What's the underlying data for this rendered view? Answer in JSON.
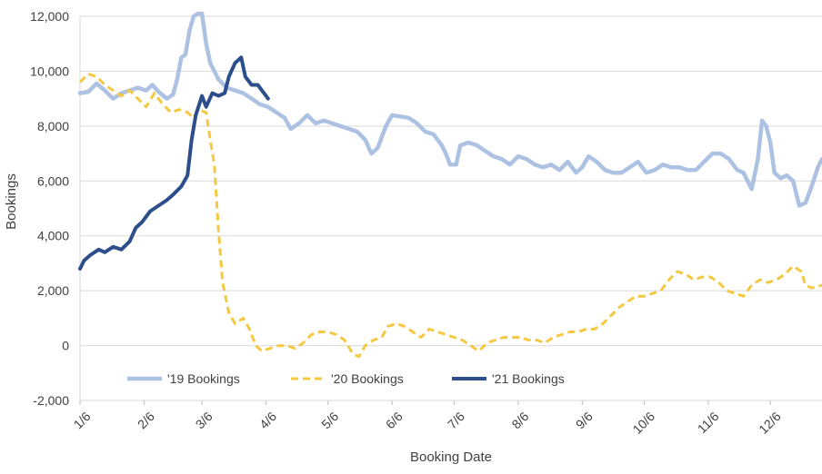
{
  "chart_data": {
    "type": "line",
    "title": "",
    "xlabel": "Booking Date",
    "ylabel": "Bookings",
    "ylim": [
      -2000,
      12000
    ],
    "yticks": [
      -2000,
      0,
      2000,
      4000,
      6000,
      8000,
      10000,
      12000
    ],
    "ytick_labels": [
      "-2,000",
      "0",
      "2,000",
      "4,000",
      "6,000",
      "8,000",
      "10,000",
      "12,000"
    ],
    "xlim": [
      "1/6",
      "12/31"
    ],
    "xtick_labels": [
      "1/6",
      "2/6",
      "3/6",
      "4/6",
      "5/6",
      "6/6",
      "7/6",
      "8/6",
      "9/6",
      "10/6",
      "11/6",
      "12/6"
    ],
    "grid": "horizontal",
    "legend_position": "bottom-left inside plot",
    "series": [
      {
        "name": "'19 Bookings",
        "color": "#adc2e2",
        "style": "solid",
        "points": [
          [
            "1/6",
            9200
          ],
          [
            "1/10",
            9250
          ],
          [
            "1/14",
            9550
          ],
          [
            "1/18",
            9300
          ],
          [
            "1/22",
            9000
          ],
          [
            "1/26",
            9200
          ],
          [
            "1/30",
            9300
          ],
          [
            "2/3",
            9400
          ],
          [
            "2/7",
            9300
          ],
          [
            "2/10",
            9500
          ],
          [
            "2/13",
            9250
          ],
          [
            "2/17",
            9000
          ],
          [
            "2/20",
            9150
          ],
          [
            "2/22",
            9700
          ],
          [
            "2/24",
            10500
          ],
          [
            "2/26",
            10600
          ],
          [
            "2/28",
            11500
          ],
          [
            "3/2",
            12000
          ],
          [
            "3/4",
            12100
          ],
          [
            "3/6",
            12100
          ],
          [
            "3/8",
            11000
          ],
          [
            "3/10",
            10300
          ],
          [
            "3/14",
            9700
          ],
          [
            "3/18",
            9400
          ],
          [
            "3/22",
            9300
          ],
          [
            "3/26",
            9200
          ],
          [
            "3/30",
            9000
          ],
          [
            "4/3",
            8800
          ],
          [
            "4/7",
            8700
          ],
          [
            "4/11",
            8500
          ],
          [
            "4/15",
            8300
          ],
          [
            "4/18",
            7900
          ],
          [
            "4/22",
            8100
          ],
          [
            "4/26",
            8400
          ],
          [
            "4/30",
            8100
          ],
          [
            "5/4",
            8200
          ],
          [
            "5/8",
            8100
          ],
          [
            "5/12",
            8000
          ],
          [
            "5/16",
            7900
          ],
          [
            "5/20",
            7800
          ],
          [
            "5/24",
            7500
          ],
          [
            "5/27",
            7000
          ],
          [
            "5/30",
            7200
          ],
          [
            "6/3",
            8000
          ],
          [
            "6/6",
            8400
          ],
          [
            "6/10",
            8350
          ],
          [
            "6/14",
            8300
          ],
          [
            "6/18",
            8100
          ],
          [
            "6/22",
            7800
          ],
          [
            "6/26",
            7700
          ],
          [
            "6/30",
            7300
          ],
          [
            "7/2",
            7000
          ],
          [
            "7/4",
            6600
          ],
          [
            "7/7",
            6600
          ],
          [
            "7/9",
            7300
          ],
          [
            "7/13",
            7400
          ],
          [
            "7/17",
            7300
          ],
          [
            "7/21",
            7100
          ],
          [
            "7/25",
            6900
          ],
          [
            "7/29",
            6800
          ],
          [
            "8/2",
            6600
          ],
          [
            "8/6",
            6900
          ],
          [
            "8/10",
            6800
          ],
          [
            "8/14",
            6600
          ],
          [
            "8/18",
            6500
          ],
          [
            "8/22",
            6600
          ],
          [
            "8/26",
            6400
          ],
          [
            "8/30",
            6700
          ],
          [
            "9/3",
            6300
          ],
          [
            "9/6",
            6500
          ],
          [
            "9/9",
            6900
          ],
          [
            "9/13",
            6700
          ],
          [
            "9/17",
            6400
          ],
          [
            "9/21",
            6300
          ],
          [
            "9/25",
            6300
          ],
          [
            "9/29",
            6500
          ],
          [
            "10/3",
            6700
          ],
          [
            "10/7",
            6300
          ],
          [
            "10/11",
            6400
          ],
          [
            "10/15",
            6600
          ],
          [
            "10/19",
            6500
          ],
          [
            "10/23",
            6500
          ],
          [
            "10/27",
            6400
          ],
          [
            "10/31",
            6400
          ],
          [
            "11/4",
            6700
          ],
          [
            "11/8",
            7000
          ],
          [
            "11/12",
            7000
          ],
          [
            "11/16",
            6800
          ],
          [
            "11/20",
            6400
          ],
          [
            "11/23",
            6300
          ],
          [
            "11/27",
            5700
          ],
          [
            "11/30",
            6800
          ],
          [
            "12/2",
            8200
          ],
          [
            "12/4",
            8000
          ],
          [
            "12/6",
            7400
          ],
          [
            "12/8",
            6300
          ],
          [
            "12/11",
            6100
          ],
          [
            "12/14",
            6200
          ],
          [
            "12/17",
            6000
          ],
          [
            "12/20",
            5100
          ],
          [
            "12/23",
            5200
          ],
          [
            "12/26",
            5800
          ],
          [
            "12/29",
            6500
          ],
          [
            "12/31",
            6800
          ]
        ]
      },
      {
        "name": "'20 Bookings",
        "color": "#f5c842",
        "style": "dashed",
        "points": [
          [
            "1/6",
            9600
          ],
          [
            "1/10",
            9900
          ],
          [
            "1/14",
            9800
          ],
          [
            "1/18",
            9500
          ],
          [
            "1/22",
            9300
          ],
          [
            "1/26",
            9100
          ],
          [
            "1/30",
            9300
          ],
          [
            "2/3",
            9000
          ],
          [
            "2/7",
            8700
          ],
          [
            "2/11",
            9200
          ],
          [
            "2/15",
            8800
          ],
          [
            "2/19",
            8500
          ],
          [
            "2/23",
            8600
          ],
          [
            "2/27",
            8500
          ],
          [
            "3/2",
            8300
          ],
          [
            "3/4",
            8600
          ],
          [
            "3/8",
            8500
          ],
          [
            "3/10",
            7500
          ],
          [
            "3/12",
            6600
          ],
          [
            "3/14",
            4200
          ],
          [
            "3/16",
            2300
          ],
          [
            "3/19",
            1200
          ],
          [
            "3/22",
            800
          ],
          [
            "3/26",
            1000
          ],
          [
            "3/29",
            600
          ],
          [
            "4/1",
            0
          ],
          [
            "4/4",
            -200
          ],
          [
            "4/8",
            -100
          ],
          [
            "4/12",
            0
          ],
          [
            "4/16",
            0
          ],
          [
            "4/20",
            -100
          ],
          [
            "4/24",
            100
          ],
          [
            "4/28",
            400
          ],
          [
            "5/2",
            500
          ],
          [
            "5/6",
            500
          ],
          [
            "5/10",
            400
          ],
          [
            "5/14",
            200
          ],
          [
            "5/18",
            -300
          ],
          [
            "5/21",
            -400
          ],
          [
            "5/24",
            0
          ],
          [
            "5/28",
            200
          ],
          [
            "6/1",
            300
          ],
          [
            "6/4",
            700
          ],
          [
            "6/8",
            800
          ],
          [
            "6/12",
            700
          ],
          [
            "6/16",
            500
          ],
          [
            "6/20",
            300
          ],
          [
            "6/24",
            600
          ],
          [
            "6/28",
            500
          ],
          [
            "7/2",
            400
          ],
          [
            "7/6",
            300
          ],
          [
            "7/10",
            200
          ],
          [
            "7/14",
            0
          ],
          [
            "7/18",
            -200
          ],
          [
            "7/22",
            100
          ],
          [
            "7/26",
            200
          ],
          [
            "7/30",
            300
          ],
          [
            "8/3",
            300
          ],
          [
            "8/7",
            300
          ],
          [
            "8/11",
            200
          ],
          [
            "8/15",
            200
          ],
          [
            "8/19",
            100
          ],
          [
            "8/23",
            300
          ],
          [
            "8/27",
            400
          ],
          [
            "8/31",
            500
          ],
          [
            "9/4",
            500
          ],
          [
            "9/8",
            600
          ],
          [
            "9/12",
            600
          ],
          [
            "9/16",
            800
          ],
          [
            "9/20",
            1100
          ],
          [
            "9/24",
            1400
          ],
          [
            "9/28",
            1600
          ],
          [
            "10/2",
            1800
          ],
          [
            "10/6",
            1800
          ],
          [
            "10/10",
            1900
          ],
          [
            "10/14",
            2000
          ],
          [
            "10/18",
            2400
          ],
          [
            "10/22",
            2700
          ],
          [
            "10/26",
            2600
          ],
          [
            "10/30",
            2400
          ],
          [
            "11/3",
            2500
          ],
          [
            "11/7",
            2500
          ],
          [
            "11/11",
            2300
          ],
          [
            "11/15",
            2000
          ],
          [
            "11/19",
            1900
          ],
          [
            "11/23",
            1800
          ],
          [
            "11/27",
            2200
          ],
          [
            "12/1",
            2400
          ],
          [
            "12/5",
            2300
          ],
          [
            "12/9",
            2400
          ],
          [
            "12/13",
            2600
          ],
          [
            "12/17",
            2900
          ],
          [
            "12/21",
            2700
          ],
          [
            "12/23",
            2200
          ],
          [
            "12/26",
            2100
          ],
          [
            "12/31",
            2200
          ]
        ]
      },
      {
        "name": "'21 Bookings",
        "color": "#2c4e8a",
        "style": "solid",
        "points": [
          [
            "1/6",
            2800
          ],
          [
            "1/8",
            3100
          ],
          [
            "1/11",
            3300
          ],
          [
            "1/15",
            3500
          ],
          [
            "1/18",
            3400
          ],
          [
            "1/22",
            3600
          ],
          [
            "1/26",
            3500
          ],
          [
            "1/30",
            3800
          ],
          [
            "2/2",
            4300
          ],
          [
            "2/5",
            4500
          ],
          [
            "2/9",
            4900
          ],
          [
            "2/13",
            5100
          ],
          [
            "2/17",
            5300
          ],
          [
            "2/20",
            5500
          ],
          [
            "2/24",
            5800
          ],
          [
            "2/27",
            6200
          ],
          [
            "3/1",
            7500
          ],
          [
            "3/3",
            8400
          ],
          [
            "3/6",
            9100
          ],
          [
            "3/8",
            8700
          ],
          [
            "3/11",
            9200
          ],
          [
            "3/14",
            9100
          ],
          [
            "3/17",
            9200
          ],
          [
            "3/19",
            9800
          ],
          [
            "3/22",
            10300
          ],
          [
            "3/25",
            10500
          ],
          [
            "3/27",
            9800
          ],
          [
            "3/30",
            9500
          ],
          [
            "4/2",
            9500
          ],
          [
            "4/5",
            9200
          ],
          [
            "4/7",
            9000
          ]
        ]
      }
    ]
  }
}
